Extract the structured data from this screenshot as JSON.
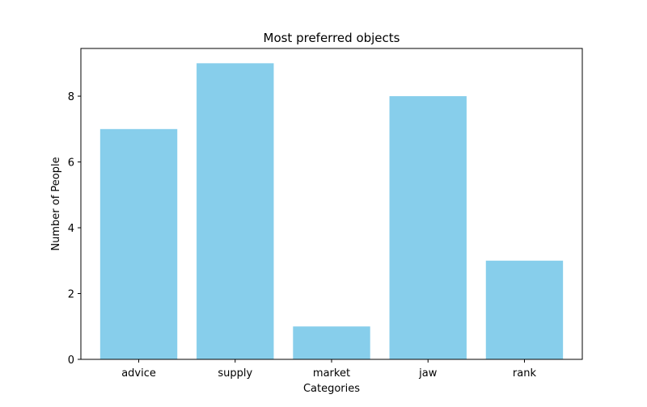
{
  "chart_data": {
    "type": "bar",
    "title": "Most preferred objects",
    "xlabel": "Categories",
    "ylabel": "Number of People",
    "categories": [
      "advice",
      "supply",
      "market",
      "jaw",
      "rank"
    ],
    "values": [
      7,
      9,
      1,
      8,
      3
    ],
    "ylim": [
      0,
      9.45
    ],
    "yticks": [
      0,
      2,
      4,
      6,
      8
    ],
    "grid": false,
    "bar_color": "#87CEEB"
  }
}
